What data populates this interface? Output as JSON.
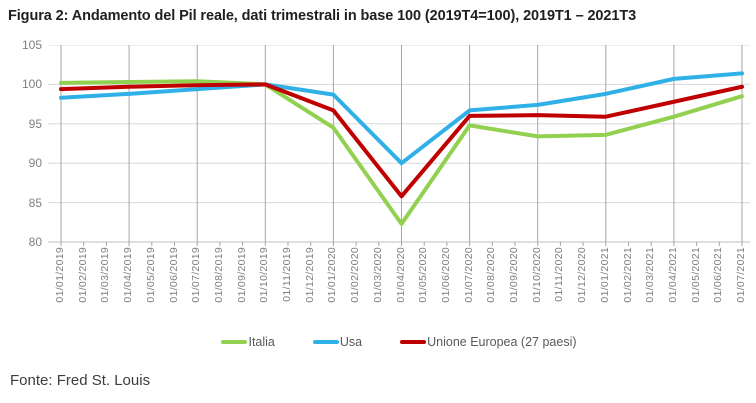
{
  "title": "Figura 2: Andamento del Pil reale, dati trimestrali in base 100 (2019T4=100), 2019T1 – 2021T3",
  "source": "Fonte: Fred St. Louis",
  "colors": {
    "italia": "#92D050",
    "usa": "#2FB0E7",
    "unione_europea": "#C00000",
    "h_grid": "#D9D9D9",
    "v_grid": "#A6A6A6",
    "axis": "#BFBFBF",
    "tick": "#A6A6A6"
  },
  "chart_data": {
    "type": "line",
    "title": "Figura 2: Andamento del Pil reale, dati trimestrali in base 100 (2019T4=100), 2019T1 – 2021T3",
    "xlabel": "",
    "ylabel": "",
    "ylim": [
      80,
      105
    ],
    "yticks": [
      105,
      100,
      95,
      90,
      85,
      80
    ],
    "grid": true,
    "legend_position": "bottom",
    "x_tick_labels_monthly": [
      "01/01/2019",
      "01/02/2019",
      "01/03/2019",
      "01/04/2019",
      "01/05/2019",
      "01/06/2019",
      "01/07/2019",
      "01/08/2019",
      "01/09/2019",
      "01/10/2019",
      "01/11/2019",
      "01/12/2019",
      "01/01/2020",
      "01/02/2020",
      "01/03/2020",
      "01/04/2020",
      "01/05/2020",
      "01/06/2020",
      "01/07/2020",
      "01/08/2020",
      "01/09/2020",
      "01/10/2020",
      "01/11/2020",
      "01/12/2020",
      "01/01/2021",
      "01/02/2021",
      "01/03/2021",
      "01/04/2021",
      "01/05/2021",
      "01/06/2021",
      "01/07/2021"
    ],
    "x": [
      "01/01/2019",
      "01/04/2019",
      "01/07/2019",
      "01/10/2019",
      "01/01/2020",
      "01/04/2020",
      "01/07/2020",
      "01/10/2020",
      "01/01/2021",
      "01/04/2021",
      "01/07/2021"
    ],
    "series": [
      {
        "name": "Italia",
        "color": "#92D050",
        "values": [
          100.2,
          100.3,
          100.4,
          100.0,
          94.5,
          82.3,
          94.8,
          93.4,
          93.6,
          95.9,
          98.5
        ]
      },
      {
        "name": "Usa",
        "color": "#2FB0E7",
        "values": [
          98.3,
          98.8,
          99.4,
          100.0,
          98.7,
          90.0,
          96.7,
          97.4,
          98.8,
          100.7,
          101.4
        ]
      },
      {
        "name": "Unione Europea (27 paesi)",
        "color": "#C00000",
        "values": [
          99.4,
          99.7,
          99.9,
          100.0,
          96.7,
          85.8,
          96.0,
          96.1,
          95.9,
          97.8,
          99.7
        ]
      }
    ]
  }
}
